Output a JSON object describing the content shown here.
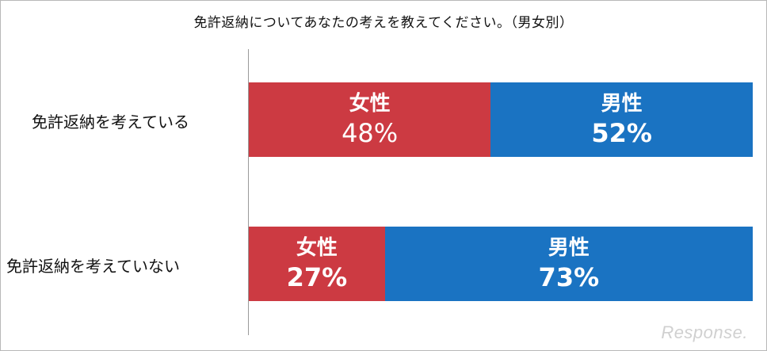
{
  "chart_data": {
    "type": "bar",
    "orientation": "horizontal",
    "stacked": true,
    "title": "免許返納についてあなたの考えを教えてください。（男女別）",
    "categories": [
      "免許返納を考えている",
      "免許返納を考えていない"
    ],
    "series": [
      {
        "name": "女性",
        "values": [
          48,
          27
        ],
        "labels": [
          "48%",
          "27%"
        ],
        "color": "#cc3a42"
      },
      {
        "name": "男性",
        "values": [
          52,
          73
        ],
        "labels": [
          "52%",
          "73%"
        ],
        "color": "#1a73c2"
      }
    ],
    "xlim": [
      0,
      100
    ],
    "grid": false,
    "legend": "none"
  },
  "watermark": "Response."
}
